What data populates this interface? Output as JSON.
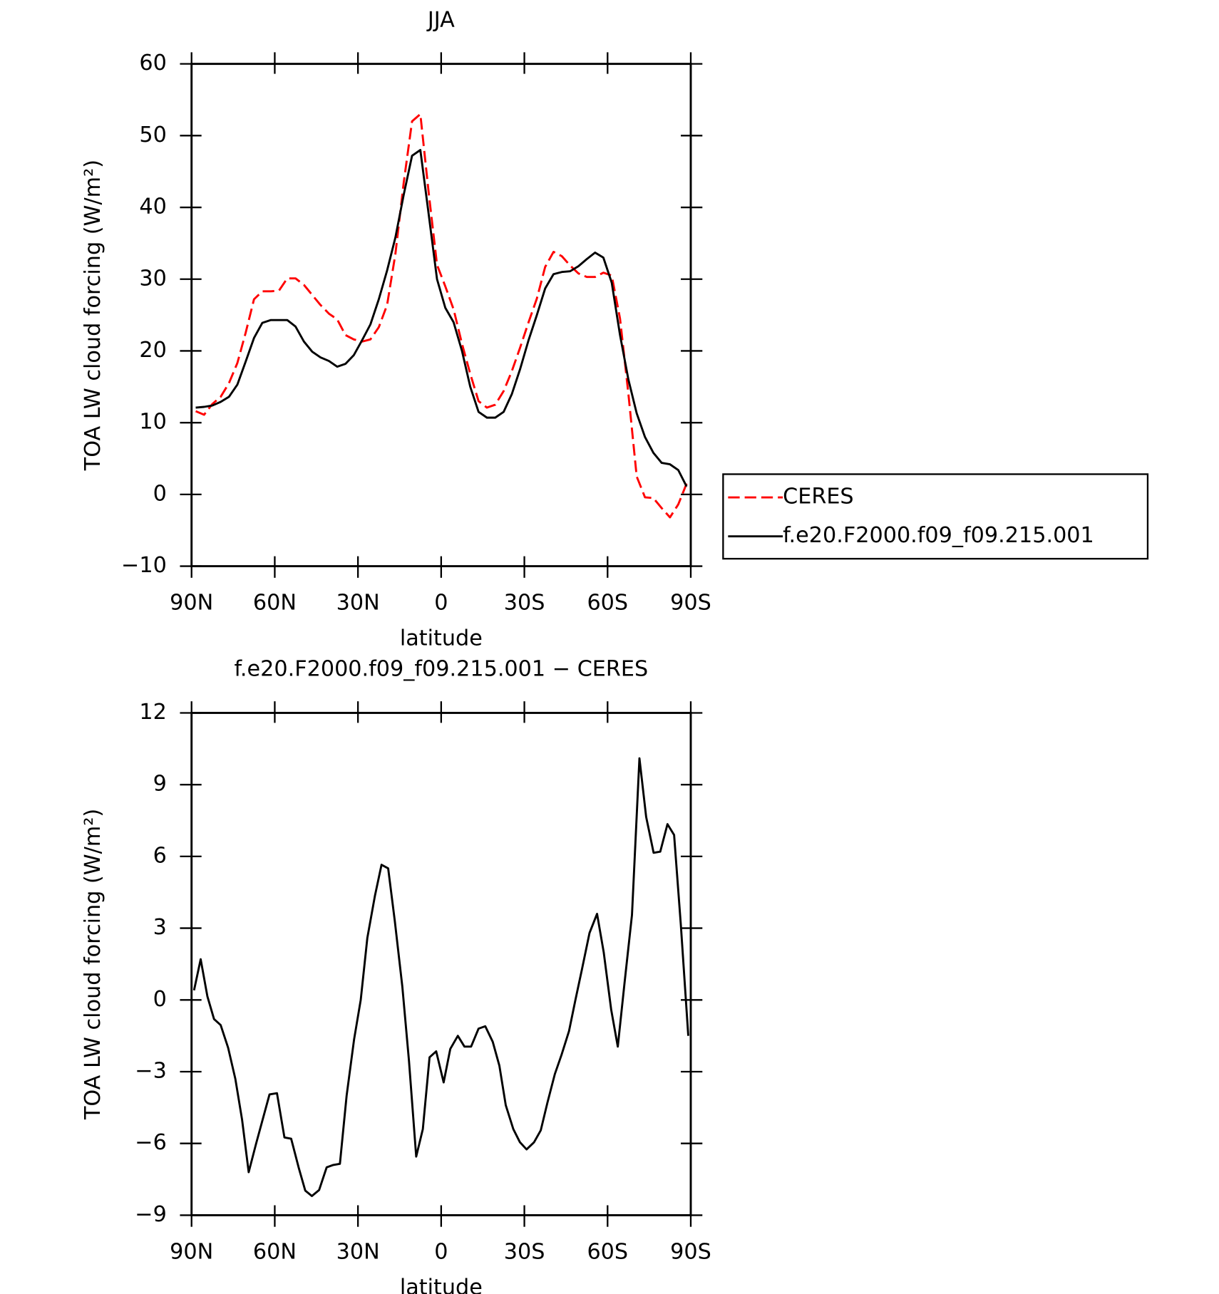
{
  "chart_data": [
    {
      "type": "line",
      "title": "JJA",
      "xlabel": "latitude",
      "ylabel": "TOA LW cloud forcing (W/m²)",
      "x": [
        88.5,
        85.5,
        82.5,
        79.5,
        76.5,
        73.5,
        70.5,
        67.5,
        64.5,
        61.5,
        58.5,
        55.5,
        52.5,
        49.5,
        46.5,
        43.5,
        40.5,
        37.5,
        34.5,
        31.5,
        28.5,
        25.5,
        22.5,
        19.5,
        16.5,
        13.5,
        10.5,
        7.5,
        4.5,
        1.5,
        -1.5,
        -4.5,
        -7.5,
        -10.5,
        -13.5,
        -16.5,
        -19.5,
        -22.5,
        -25.5,
        -28.5,
        -31.5,
        -34.5,
        -37.5,
        -40.5,
        -43.5,
        -46.5,
        -49.5,
        -52.5,
        -55.5,
        -58.5,
        -61.5,
        -64.5,
        -67.5,
        -70.5,
        -73.5,
        -76.5,
        -79.5,
        -82.5,
        -85.5,
        -88.5
      ],
      "series": [
        {
          "name": "CERES",
          "color": "#ff0000",
          "style": "dashed",
          "values": [
            11.6,
            11.1,
            12.6,
            13.6,
            15.5,
            18.3,
            22.5,
            27.2,
            28.3,
            28.3,
            28.4,
            30.1,
            30.1,
            29.2,
            27.8,
            26.4,
            25.2,
            24.4,
            22.2,
            21.6,
            21.3,
            21.6,
            23.3,
            26.4,
            33.5,
            43.5,
            52,
            53,
            42,
            32,
            29,
            25.8,
            21,
            16.8,
            13,
            12.1,
            12.5,
            14.4,
            17.2,
            20.5,
            24,
            27.3,
            31.7,
            33.8,
            33.2,
            31.9,
            30.8,
            30.3,
            30.3,
            30.9,
            30.5,
            24.5,
            14,
            2.5,
            -0.4,
            -0.5,
            -1.9,
            -3.2,
            -1.4,
            1.5
          ]
        },
        {
          "name": "f.e20.F2000.f09_f09.215.001",
          "color": "#000000",
          "style": "solid",
          "values": [
            12.1,
            12.2,
            12.4,
            12.9,
            13.6,
            15.3,
            18.5,
            21.8,
            23.9,
            24.3,
            24.3,
            24.3,
            23.4,
            21.3,
            19.9,
            19.1,
            18.6,
            17.8,
            18.2,
            19.4,
            21.5,
            23.7,
            27.2,
            31.2,
            35.8,
            41.8,
            47.2,
            48,
            39,
            30,
            26,
            24,
            20,
            15,
            11.5,
            10.7,
            10.7,
            11.5,
            14,
            17.5,
            21.5,
            25,
            28.7,
            30.7,
            31,
            31.1,
            31.8,
            32.8,
            33.7,
            33,
            29.5,
            22.2,
            16,
            11.3,
            8,
            5.8,
            4.4,
            4.2,
            3.4,
            1.1
          ]
        }
      ],
      "xlim": [
        90,
        -90
      ],
      "xticks": [
        {
          "value": 90,
          "label": "90N"
        },
        {
          "value": 60,
          "label": "60N"
        },
        {
          "value": 30,
          "label": "30N"
        },
        0,
        {
          "value": -30,
          "label": "30S"
        },
        {
          "value": -60,
          "label": "60S"
        },
        {
          "value": -90,
          "label": "90S"
        }
      ],
      "ylim": [
        -10,
        60
      ],
      "yticks": [
        {
          "value": -10,
          "label": "−10"
        },
        0,
        10,
        20,
        30,
        40,
        50,
        60
      ],
      "legend": "right"
    },
    {
      "type": "line",
      "title": "f.e20.F2000.f09_f09.215.001 − CERES",
      "xlabel": "latitude",
      "ylabel": "TOA LW cloud forcing (W/m²)",
      "x": [
        89.1,
        86.7,
        84.3,
        81.9,
        79.5,
        76.8,
        74.2,
        71.8,
        69.4,
        66.7,
        61.9,
        59.2,
        56.5,
        54.1,
        51.4,
        49,
        46.6,
        44,
        41.3,
        38.9,
        36.5,
        34.1,
        31.4,
        29,
        26.6,
        23.9,
        21.5,
        19.1,
        16.7,
        14,
        11.6,
        9,
        6.6,
        4.2,
        1.8,
        -0.9,
        -3.3,
        -6,
        -8.4,
        -10.8,
        -13.5,
        -15.9,
        -18.6,
        -21,
        -23.3,
        -26,
        -28.4,
        -30.8,
        -33.5,
        -35.9,
        -38.3,
        -41,
        -43.4,
        -46.1,
        -48.4,
        -50.8,
        -53.5,
        -56.2,
        -58.6,
        -61.3,
        -63.7,
        -66.1,
        -68.8,
        -71.5,
        -73.9,
        -76.6,
        -79,
        -81.6,
        -84,
        -86.4,
        -89.1
      ],
      "values": [
        0.4,
        1.7,
        0.15,
        -0.8,
        -1.05,
        -2,
        -3.3,
        -5,
        -7.2,
        -6,
        -3.95,
        -3.9,
        -5.75,
        -5.8,
        -7,
        -7.97,
        -8.2,
        -7.95,
        -7,
        -6.9,
        -6.85,
        -4,
        -1.65,
        0,
        2.6,
        4.35,
        5.65,
        5.5,
        3.3,
        0.55,
        -2.55,
        -6.55,
        -5.4,
        -2.4,
        -2.15,
        -3.45,
        -2.05,
        -1.5,
        -1.95,
        -1.95,
        -1.2,
        -1.1,
        -1.75,
        -2.75,
        -4.4,
        -5.4,
        -5.95,
        -6.25,
        -5.95,
        -5.45,
        -4.3,
        -3.1,
        -2.3,
        -1.3,
        0,
        1.3,
        2.8,
        3.6,
        2,
        -0.4,
        -1.95,
        0.7,
        3.55,
        10.1,
        7.65,
        6.15,
        6.2,
        7.35,
        6.9,
        3.15,
        -1.5
      ],
      "color": "#000000",
      "xlim": [
        90,
        -90
      ],
      "xticks": [
        {
          "value": 90,
          "label": "90N"
        },
        {
          "value": 60,
          "label": "60N"
        },
        {
          "value": 30,
          "label": "30N"
        },
        0,
        {
          "value": -30,
          "label": "30S"
        },
        {
          "value": -60,
          "label": "60S"
        },
        {
          "value": -90,
          "label": "90S"
        }
      ],
      "ylim": [
        -9,
        12
      ],
      "yticks": [
        {
          "value": -9,
          "label": "−9"
        },
        {
          "value": -6,
          "label": "−6"
        },
        {
          "value": -3,
          "label": "−3"
        },
        0,
        3,
        6,
        9,
        12
      ]
    }
  ]
}
